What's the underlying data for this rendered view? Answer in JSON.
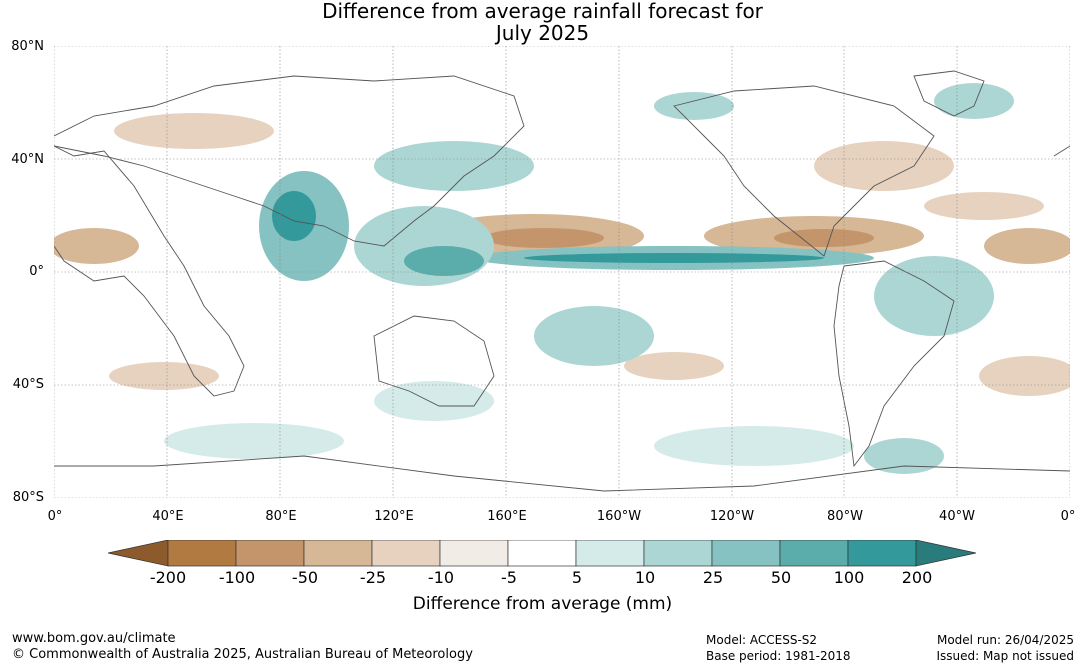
{
  "title": {
    "line1": "Difference from average rainfall forecast for",
    "line2": "July 2025"
  },
  "map": {
    "lat_labels": [
      "80°N",
      "40°N",
      "0°",
      "40°S",
      "80°S"
    ],
    "lon_labels": [
      "0°",
      "40°E",
      "80°E",
      "120°E",
      "160°E",
      "160°W",
      "120°W",
      "80°W",
      "40°W",
      "0°"
    ]
  },
  "legend": {
    "title": "Difference from average (mm)",
    "ticks": [
      "-200",
      "-100",
      "-50",
      "-25",
      "-10",
      "-5",
      "5",
      "10",
      "25",
      "50",
      "100",
      "200"
    ],
    "colors": [
      "#8c5a2b",
      "#b07a40",
      "#c4956a",
      "#d6b796",
      "#e6d2bf",
      "#f2ece6",
      "#ffffff",
      "#d5ebe9",
      "#acd6d4",
      "#85c2c1",
      "#5aadab",
      "#33999a",
      "#2a7b7b"
    ]
  },
  "footer": {
    "url": "www.bom.gov.au/climate",
    "copyright": "© Commonwealth of Australia 2025, Australian Bureau of Meteorology",
    "model": "Model: ACCESS-S2",
    "base_period": "Base period: 1981-2018",
    "model_run": "Model run: 26/04/2025",
    "issued": "Issued: Map not issued"
  }
}
